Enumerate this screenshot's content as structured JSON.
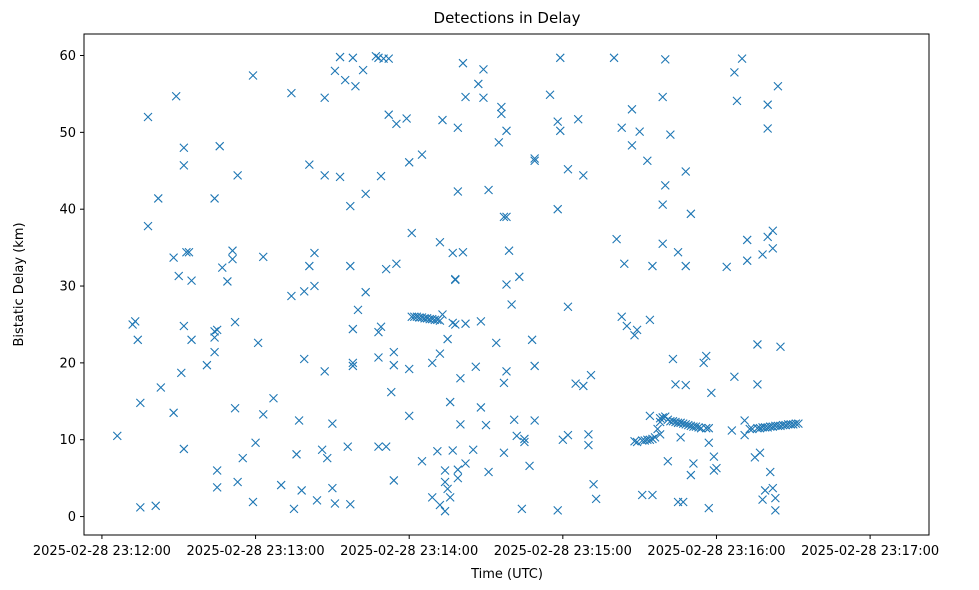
{
  "chart_data": {
    "type": "scatter",
    "title": "Detections in Delay",
    "xlabel": "Time (UTC)",
    "ylabel": "Bistatic Delay (km)",
    "marker": "x",
    "color": "#1f77b4",
    "grid": false,
    "legend": "none",
    "x_ticks": [
      "2025-02-28 23:12:00",
      "2025-02-28 23:13:00",
      "2025-02-28 23:14:00",
      "2025-02-28 23:15:00",
      "2025-02-28 23:16:00",
      "2025-02-28 23:17:00"
    ],
    "y_ticks": [
      "0",
      "10",
      "20",
      "30",
      "40",
      "50",
      "60"
    ],
    "xlim": [
      "2025-02-28 23:11:53",
      "2025-02-28 23:17:23"
    ],
    "ylim": [
      -2.4,
      62.8
    ],
    "points": [
      [
        "23:12:06",
        10.5
      ],
      [
        "23:12:12",
        25.0
      ],
      [
        "23:12:13",
        25.4
      ],
      [
        "23:12:14",
        23.0
      ],
      [
        "23:12:15",
        14.8
      ],
      [
        "23:12:15",
        1.2
      ],
      [
        "23:12:18",
        52.0
      ],
      [
        "23:12:18",
        37.8
      ],
      [
        "23:12:21",
        1.4
      ],
      [
        "23:12:22",
        41.4
      ],
      [
        "23:12:23",
        16.8
      ],
      [
        "23:12:28",
        13.5
      ],
      [
        "23:12:28",
        33.7
      ],
      [
        "23:12:29",
        54.7
      ],
      [
        "23:12:30",
        31.3
      ],
      [
        "23:12:31",
        18.7
      ],
      [
        "23:12:32",
        45.7
      ],
      [
        "23:12:32",
        24.8
      ],
      [
        "23:12:32",
        48.0
      ],
      [
        "23:12:32",
        8.8
      ],
      [
        "23:12:33",
        34.4
      ],
      [
        "23:12:34",
        34.4
      ],
      [
        "23:12:35",
        23.0
      ],
      [
        "23:12:35",
        30.7
      ],
      [
        "23:12:41",
        19.7
      ],
      [
        "23:12:44",
        41.4
      ],
      [
        "23:12:44",
        24.1
      ],
      [
        "23:12:44",
        23.3
      ],
      [
        "23:12:44",
        21.4
      ],
      [
        "23:12:45",
        24.3
      ],
      [
        "23:12:45",
        6.0
      ],
      [
        "23:12:45",
        3.8
      ],
      [
        "23:12:46",
        48.2
      ],
      [
        "23:12:47",
        32.4
      ],
      [
        "23:12:49",
        30.6
      ],
      [
        "23:12:51",
        34.6
      ],
      [
        "23:12:51",
        33.5
      ],
      [
        "23:12:52",
        25.3
      ],
      [
        "23:12:52",
        14.1
      ],
      [
        "23:12:53",
        44.4
      ],
      [
        "23:12:53",
        4.5
      ],
      [
        "23:12:55",
        7.6
      ],
      [
        "23:12:59",
        57.4
      ],
      [
        "23:12:59",
        1.9
      ],
      [
        "23:13:00",
        9.6
      ],
      [
        "23:13:01",
        22.6
      ],
      [
        "23:13:03",
        33.8
      ],
      [
        "23:13:03",
        13.3
      ],
      [
        "23:13:07",
        15.4
      ],
      [
        "23:13:10",
        4.1
      ],
      [
        "23:13:14",
        55.1
      ],
      [
        "23:13:14",
        28.7
      ],
      [
        "23:13:15",
        1.0
      ],
      [
        "23:13:16",
        8.1
      ],
      [
        "23:13:17",
        12.5
      ],
      [
        "23:13:18",
        3.4
      ],
      [
        "23:13:19",
        29.3
      ],
      [
        "23:13:19",
        20.5
      ],
      [
        "23:13:21",
        32.6
      ],
      [
        "23:13:21",
        45.8
      ],
      [
        "23:13:23",
        34.3
      ],
      [
        "23:13:23",
        30.0
      ],
      [
        "23:13:24",
        2.1
      ],
      [
        "23:13:26",
        8.7
      ],
      [
        "23:13:27",
        18.9
      ],
      [
        "23:13:27",
        54.5
      ],
      [
        "23:13:27",
        44.4
      ],
      [
        "23:13:28",
        7.6
      ],
      [
        "23:13:30",
        3.7
      ],
      [
        "23:13:30",
        12.1
      ],
      [
        "23:13:31",
        58.0
      ],
      [
        "23:13:31",
        1.7
      ],
      [
        "23:13:33",
        59.8
      ],
      [
        "23:13:33",
        44.2
      ],
      [
        "23:13:35",
        56.8
      ],
      [
        "23:13:36",
        9.1
      ],
      [
        "23:13:37",
        40.4
      ],
      [
        "23:13:37",
        32.6
      ],
      [
        "23:13:37",
        1.6
      ],
      [
        "23:13:38",
        20.0
      ],
      [
        "23:13:38",
        59.7
      ],
      [
        "23:13:38",
        24.4
      ],
      [
        "23:13:38",
        19.6
      ],
      [
        "23:13:39",
        56.0
      ],
      [
        "23:13:40",
        26.9
      ],
      [
        "23:13:42",
        58.1
      ],
      [
        "23:13:43",
        42.0
      ],
      [
        "23:13:43",
        29.2
      ],
      [
        "23:13:47",
        59.9
      ],
      [
        "23:13:48",
        59.7
      ],
      [
        "23:13:48",
        20.7
      ],
      [
        "23:13:48",
        24.0
      ],
      [
        "23:13:48",
        9.1
      ],
      [
        "23:13:49",
        24.7
      ],
      [
        "23:13:49",
        44.3
      ],
      [
        "23:13:50",
        59.6
      ],
      [
        "23:13:51",
        32.2
      ],
      [
        "23:13:51",
        9.1
      ],
      [
        "23:13:52",
        59.6
      ],
      [
        "23:13:52",
        52.3
      ],
      [
        "23:13:53",
        16.2
      ],
      [
        "23:13:54",
        4.7
      ],
      [
        "23:13:54",
        21.4
      ],
      [
        "23:13:54",
        19.7
      ],
      [
        "23:13:55",
        32.9
      ],
      [
        "23:13:55",
        51.1
      ],
      [
        "23:13:59",
        51.8
      ],
      [
        "23:14:00",
        46.1
      ],
      [
        "23:14:00",
        13.1
      ],
      [
        "23:14:00",
        19.2
      ],
      [
        "23:14:01",
        36.9
      ],
      [
        "23:14:05",
        47.1
      ],
      [
        "23:14:05",
        7.2
      ],
      [
        "23:14:09",
        20.0
      ],
      [
        "23:14:09",
        2.5
      ],
      [
        "23:14:11",
        8.5
      ],
      [
        "23:14:12",
        1.5
      ],
      [
        "23:14:12",
        21.2
      ],
      [
        "23:14:12",
        35.7
      ],
      [
        "23:14:13",
        51.6
      ],
      [
        "23:14:14",
        4.5
      ],
      [
        "23:14:14",
        6.0
      ],
      [
        "23:14:14",
        0.7
      ],
      [
        "23:14:15",
        3.6
      ],
      [
        "23:14:15",
        23.1
      ],
      [
        "23:14:16",
        2.5
      ],
      [
        "23:14:16",
        14.9
      ],
      [
        "23:14:17",
        8.6
      ],
      [
        "23:14:17",
        34.3
      ],
      [
        "23:14:18",
        30.8
      ],
      [
        "23:14:18",
        30.9
      ],
      [
        "23:14:19",
        5.0
      ],
      [
        "23:14:19",
        6.1
      ],
      [
        "23:14:19",
        42.3
      ],
      [
        "23:14:19",
        50.6
      ],
      [
        "23:14:20",
        12.0
      ],
      [
        "23:14:20",
        18.0
      ],
      [
        "23:14:21",
        59.0
      ],
      [
        "23:14:21",
        34.4
      ],
      [
        "23:14:22",
        54.6
      ],
      [
        "23:14:22",
        25.1
      ],
      [
        "23:14:22",
        6.9
      ],
      [
        "23:14:25",
        8.7
      ],
      [
        "23:14:26",
        19.5
      ],
      [
        "23:14:27",
        56.3
      ],
      [
        "23:14:28",
        25.4
      ],
      [
        "23:14:28",
        14.2
      ],
      [
        "23:14:29",
        58.2
      ],
      [
        "23:14:29",
        54.5
      ],
      [
        "23:14:30",
        11.9
      ],
      [
        "23:14:31",
        5.8
      ],
      [
        "23:14:31",
        42.5
      ],
      [
        "23:14:34",
        22.6
      ],
      [
        "23:14:35",
        48.7
      ],
      [
        "23:14:36",
        53.3
      ],
      [
        "23:14:36",
        52.4
      ],
      [
        "23:14:37",
        8.3
      ],
      [
        "23:14:37",
        17.4
      ],
      [
        "23:14:37",
        39.0
      ],
      [
        "23:14:38",
        39.0
      ],
      [
        "23:14:38",
        30.2
      ],
      [
        "23:14:38",
        50.2
      ],
      [
        "23:14:38",
        18.9
      ],
      [
        "23:14:39",
        34.6
      ],
      [
        "23:14:40",
        27.6
      ],
      [
        "23:14:41",
        12.6
      ],
      [
        "23:14:42",
        10.5
      ],
      [
        "23:14:43",
        31.2
      ],
      [
        "23:14:44",
        1.0
      ],
      [
        "23:14:45",
        9.7
      ],
      [
        "23:14:45",
        10.1
      ],
      [
        "23:14:47",
        6.6
      ],
      [
        "23:14:48",
        23.0
      ],
      [
        "23:14:49",
        19.6
      ],
      [
        "23:14:49",
        12.5
      ],
      [
        "23:14:49",
        46.3
      ],
      [
        "23:14:49",
        46.6
      ],
      [
        "23:14:55",
        54.9
      ],
      [
        "23:14:58",
        40.0
      ],
      [
        "23:14:58",
        51.4
      ],
      [
        "23:14:58",
        0.8
      ],
      [
        "23:14:59",
        59.7
      ],
      [
        "23:14:59",
        50.2
      ],
      [
        "23:15:00",
        10.0
      ],
      [
        "23:15:02",
        10.6
      ],
      [
        "23:15:02",
        45.2
      ],
      [
        "23:15:02",
        27.3
      ],
      [
        "23:15:05",
        17.3
      ],
      [
        "23:15:06",
        51.7
      ],
      [
        "23:15:08",
        17.0
      ],
      [
        "23:15:08",
        44.4
      ],
      [
        "23:15:10",
        9.3
      ],
      [
        "23:15:10",
        10.7
      ],
      [
        "23:15:11",
        18.4
      ],
      [
        "23:15:12",
        4.2
      ],
      [
        "23:15:13",
        2.3
      ],
      [
        "23:15:20",
        59.7
      ],
      [
        "23:15:21",
        36.1
      ],
      [
        "23:15:23",
        26.0
      ],
      [
        "23:15:23",
        50.6
      ],
      [
        "23:15:24",
        32.9
      ],
      [
        "23:15:25",
        24.8
      ],
      [
        "23:15:27",
        53.0
      ],
      [
        "23:15:27",
        48.3
      ],
      [
        "23:15:28",
        23.6
      ],
      [
        "23:15:29",
        24.3
      ],
      [
        "23:15:29",
        9.7
      ],
      [
        "23:15:30",
        50.1
      ],
      [
        "23:15:31",
        2.8
      ],
      [
        "23:15:33",
        46.3
      ],
      [
        "23:15:34",
        25.6
      ],
      [
        "23:15:34",
        13.1
      ],
      [
        "23:15:35",
        2.8
      ],
      [
        "23:15:35",
        32.6
      ],
      [
        "23:15:38",
        12.3
      ],
      [
        "23:15:38",
        10.7
      ],
      [
        "23:15:39",
        40.6
      ],
      [
        "23:15:39",
        35.5
      ],
      [
        "23:15:39",
        54.6
      ],
      [
        "23:15:40",
        59.5
      ],
      [
        "23:15:40",
        43.1
      ],
      [
        "23:15:41",
        7.2
      ],
      [
        "23:15:42",
        49.7
      ],
      [
        "23:15:43",
        20.5
      ],
      [
        "23:15:44",
        17.2
      ],
      [
        "23:15:45",
        34.4
      ],
      [
        "23:15:45",
        1.9
      ],
      [
        "23:15:46",
        10.3
      ],
      [
        "23:15:47",
        1.9
      ],
      [
        "23:15:48",
        17.1
      ],
      [
        "23:15:48",
        32.6
      ],
      [
        "23:15:48",
        44.9
      ],
      [
        "23:15:50",
        39.4
      ],
      [
        "23:15:50",
        5.4
      ],
      [
        "23:15:51",
        6.9
      ],
      [
        "23:15:55",
        20.0
      ],
      [
        "23:15:56",
        20.9
      ],
      [
        "23:15:57",
        9.6
      ],
      [
        "23:15:57",
        1.1
      ],
      [
        "23:15:58",
        16.1
      ],
      [
        "23:15:59",
        7.8
      ],
      [
        "23:15:59",
        6.0
      ],
      [
        "23:16:00",
        6.3
      ],
      [
        "23:16:04",
        32.5
      ],
      [
        "23:16:06",
        11.2
      ],
      [
        "23:16:07",
        57.8
      ],
      [
        "23:16:07",
        18.2
      ],
      [
        "23:16:08",
        54.1
      ],
      [
        "23:16:10",
        59.6
      ],
      [
        "23:16:11",
        12.5
      ],
      [
        "23:16:11",
        10.6
      ],
      [
        "23:16:12",
        36.0
      ],
      [
        "23:16:12",
        33.3
      ],
      [
        "23:16:15",
        7.7
      ],
      [
        "23:16:16",
        17.2
      ],
      [
        "23:16:16",
        22.4
      ],
      [
        "23:16:17",
        8.3
      ],
      [
        "23:16:18",
        34.1
      ],
      [
        "23:16:18",
        2.2
      ],
      [
        "23:16:19",
        3.4
      ],
      [
        "23:16:20",
        36.4
      ],
      [
        "23:16:20",
        53.6
      ],
      [
        "23:16:20",
        50.5
      ],
      [
        "23:16:21",
        5.8
      ],
      [
        "23:16:22",
        37.2
      ],
      [
        "23:16:22",
        34.9
      ],
      [
        "23:16:22",
        3.7
      ],
      [
        "23:16:23",
        0.8
      ],
      [
        "23:16:23",
        2.4
      ],
      [
        "23:16:24",
        56.0
      ],
      [
        "23:16:25",
        22.1
      ],
      [
        "23:14:01",
        26.0
      ],
      [
        "23:14:02",
        26.0
      ],
      [
        "23:14:03",
        26.0
      ],
      [
        "23:14:04",
        25.9
      ],
      [
        "23:14:05",
        25.9
      ],
      [
        "23:14:06",
        25.8
      ],
      [
        "23:14:07",
        25.8
      ],
      [
        "23:14:08",
        25.7
      ],
      [
        "23:14:09",
        25.7
      ],
      [
        "23:14:10",
        25.6
      ],
      [
        "23:14:11",
        25.6
      ],
      [
        "23:14:12",
        25.5
      ],
      [
        "23:14:13",
        26.3
      ],
      [
        "23:14:17",
        25.2
      ],
      [
        "23:14:18",
        25.0
      ],
      [
        "23:15:28",
        9.8
      ],
      [
        "23:15:31",
        9.9
      ],
      [
        "23:15:32",
        9.9
      ],
      [
        "23:15:33",
        10.0
      ],
      [
        "23:15:34",
        10.0
      ],
      [
        "23:15:35",
        10.1
      ],
      [
        "23:15:36",
        10.3
      ],
      [
        "23:15:37",
        11.4
      ],
      [
        "23:15:38",
        12.8
      ],
      [
        "23:15:39",
        12.9
      ],
      [
        "23:15:40",
        13.0
      ],
      [
        "23:15:41",
        12.6
      ],
      [
        "23:15:42",
        12.4
      ],
      [
        "23:15:43",
        12.4
      ],
      [
        "23:15:44",
        12.3
      ],
      [
        "23:15:45",
        12.2
      ],
      [
        "23:15:46",
        12.2
      ],
      [
        "23:15:47",
        12.1
      ],
      [
        "23:15:48",
        12.0
      ],
      [
        "23:15:49",
        11.9
      ],
      [
        "23:15:50",
        11.8
      ],
      [
        "23:15:51",
        11.7
      ],
      [
        "23:15:52",
        11.7
      ],
      [
        "23:15:53",
        11.6
      ],
      [
        "23:15:54",
        11.5
      ],
      [
        "23:15:56",
        11.5
      ],
      [
        "23:15:57",
        11.5
      ],
      [
        "23:16:13",
        11.4
      ],
      [
        "23:16:14",
        11.4
      ],
      [
        "23:16:16",
        11.5
      ],
      [
        "23:16:17",
        11.5
      ],
      [
        "23:16:18",
        11.6
      ],
      [
        "23:16:19",
        11.6
      ],
      [
        "23:16:20",
        11.6
      ],
      [
        "23:16:21",
        11.7
      ],
      [
        "23:16:22",
        11.7
      ],
      [
        "23:16:23",
        11.8
      ],
      [
        "23:16:24",
        11.8
      ],
      [
        "23:16:25",
        11.8
      ],
      [
        "23:16:26",
        11.9
      ],
      [
        "23:16:27",
        11.9
      ],
      [
        "23:16:28",
        12.0
      ],
      [
        "23:16:29",
        12.0
      ],
      [
        "23:16:30",
        12.0
      ],
      [
        "23:16:31",
        12.1
      ],
      [
        "23:16:32",
        12.1
      ]
    ]
  }
}
